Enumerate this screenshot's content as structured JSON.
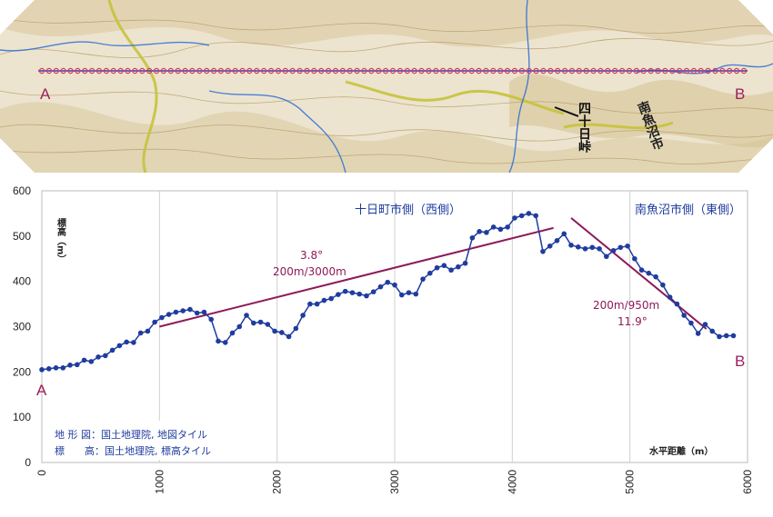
{
  "map": {
    "label_a": "A",
    "label_b": "B",
    "pass_name": "四十日峠",
    "city_name": "南魚沼市",
    "colors": {
      "background": "#ece4cf",
      "route_line": "#2b3fc7",
      "route_dot": "#d93a55",
      "road": "#c7c23a",
      "river": "#2e6fd3"
    }
  },
  "chart_data": {
    "type": "line",
    "xlim": [
      0,
      6000
    ],
    "ylim": [
      0,
      600
    ],
    "xticks": [
      0,
      1000,
      2000,
      3000,
      4000,
      5000,
      6000
    ],
    "yticks": [
      0,
      100,
      200,
      300,
      400,
      500,
      600
    ],
    "xticklabels": [
      "0",
      "1000",
      "2000",
      "3000",
      "4000",
      "5000",
      "6000"
    ],
    "yticklabels": [
      "0",
      "100",
      "200",
      "300",
      "400",
      "500",
      "600"
    ],
    "xlabel": "水平距離（m）",
    "ylabel": "標高（m）",
    "grid": "vertical",
    "series": [
      {
        "color": "#1f3c9e",
        "x": [
          0,
          60,
          120,
          180,
          240,
          300,
          360,
          420,
          480,
          540,
          600,
          660,
          720,
          780,
          840,
          900,
          960,
          1020,
          1080,
          1140,
          1200,
          1260,
          1320,
          1380,
          1440,
          1500,
          1560,
          1620,
          1680,
          1740,
          1800,
          1860,
          1920,
          1980,
          2040,
          2100,
          2160,
          2220,
          2280,
          2340,
          2400,
          2460,
          2520,
          2580,
          2640,
          2700,
          2760,
          2820,
          2880,
          2940,
          3000,
          3060,
          3120,
          3180,
          3240,
          3300,
          3360,
          3420,
          3480,
          3540,
          3600,
          3660,
          3720,
          3780,
          3840,
          3900,
          3960,
          4020,
          4080,
          4140,
          4200,
          4260,
          4320,
          4380,
          4440,
          4500,
          4560,
          4620,
          4680,
          4740,
          4800,
          4860,
          4920,
          4980,
          5040,
          5100,
          5160,
          5220,
          5280,
          5340,
          5400,
          5460,
          5520,
          5580,
          5640,
          5700,
          5760,
          5820,
          5880
        ],
        "y": [
          205,
          207,
          209,
          209,
          215,
          216,
          226,
          223,
          233,
          236,
          248,
          258,
          266,
          265,
          286,
          290,
          310,
          320,
          327,
          332,
          335,
          338,
          330,
          332,
          316,
          268,
          265,
          286,
          300,
          325,
          308,
          310,
          305,
          290,
          287,
          278,
          296,
          325,
          350,
          350,
          358,
          362,
          371,
          378,
          375,
          372,
          368,
          377,
          388,
          398,
          392,
          370,
          375,
          372,
          405,
          418,
          430,
          435,
          425,
          432,
          440,
          496,
          510,
          508,
          520,
          515,
          520,
          540,
          545,
          550,
          545,
          466,
          478,
          490,
          505,
          480,
          476,
          472,
          475,
          472,
          455,
          468,
          475,
          478,
          450,
          425,
          418,
          410,
          392,
          365,
          350,
          325,
          308,
          285,
          305,
          290,
          278,
          280,
          280
        ]
      }
    ],
    "trend_lines": [
      {
        "x": [
          1000,
          4350
        ],
        "y": [
          300,
          518
        ],
        "color": "#8e1a58"
      },
      {
        "x": [
          4500,
          5650
        ],
        "y": [
          540,
          295
        ],
        "color": "#8e1a58"
      }
    ],
    "annotations": {
      "west_slope_angle": "3.8°",
      "west_slope_ratio": "200m/3000m",
      "east_slope_ratio": "200m/950m",
      "east_slope_angle": "11.9°",
      "west_side_label": "十日町市側（西側）",
      "east_side_label": "南魚沼市側（東側）",
      "point_a": "A",
      "point_b": "B",
      "credit_line1": "地 形 図：国土地理院, 地図タイル",
      "credit_line2": "標　　高：国土地理院, 標高タイル"
    }
  }
}
